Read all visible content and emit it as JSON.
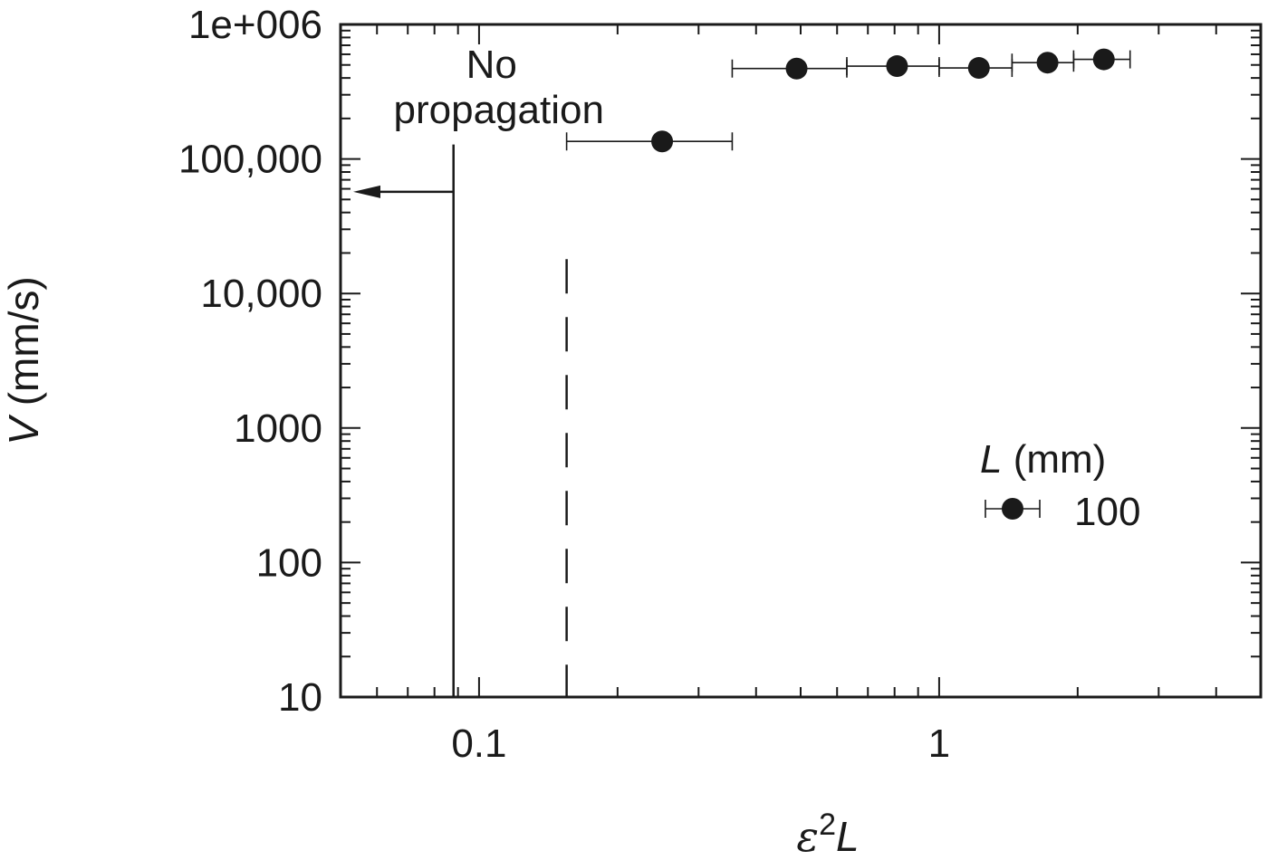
{
  "chart_data": {
    "type": "scatter",
    "x_scale": "log",
    "y_scale": "log",
    "xlim": [
      0.05,
      5
    ],
    "ylim": [
      10,
      1000000
    ],
    "xlabel": {
      "symbol": "ε",
      "sup": "2",
      "var": "L"
    },
    "ylabel": {
      "var": "V",
      "unit": " (mm/s)"
    },
    "x_ticks": [
      {
        "value": 0.1,
        "label": "0.1"
      },
      {
        "value": 1,
        "label": "1"
      }
    ],
    "y_ticks": [
      {
        "value": 10,
        "label": "10"
      },
      {
        "value": 100,
        "label": "100"
      },
      {
        "value": 1000,
        "label": "1000"
      },
      {
        "value": 10000,
        "label": "10,000"
      },
      {
        "value": 100000,
        "label": "100,000"
      },
      {
        "value": 1000000,
        "label": "1e+006"
      }
    ],
    "series": [
      {
        "name": "100",
        "marker": "filled-circle",
        "color": "#1a1a1a",
        "points": [
          {
            "x": 0.25,
            "y": 135000,
            "xmin": 0.155,
            "xmax": 0.355
          },
          {
            "x": 0.49,
            "y": 470000,
            "xmin": 0.355,
            "xmax": 0.63
          },
          {
            "x": 0.81,
            "y": 490000,
            "xmin": 0.63,
            "xmax": 1.0
          },
          {
            "x": 1.22,
            "y": 475000,
            "xmin": 1.0,
            "xmax": 1.44
          },
          {
            "x": 1.72,
            "y": 520000,
            "xmin": 1.44,
            "xmax": 1.96
          },
          {
            "x": 2.28,
            "y": 550000,
            "xmin": 1.96,
            "xmax": 2.6
          }
        ]
      }
    ],
    "legend": {
      "title_var": "L",
      "title_unit": " (mm)",
      "entry": "100",
      "placement": "right"
    },
    "annotations": {
      "no_propagation": {
        "line1": "No",
        "line2": "propagation"
      },
      "solid_line_x": 0.088,
      "arrow_y": 57000,
      "dashed_line_x": 0.155
    }
  }
}
